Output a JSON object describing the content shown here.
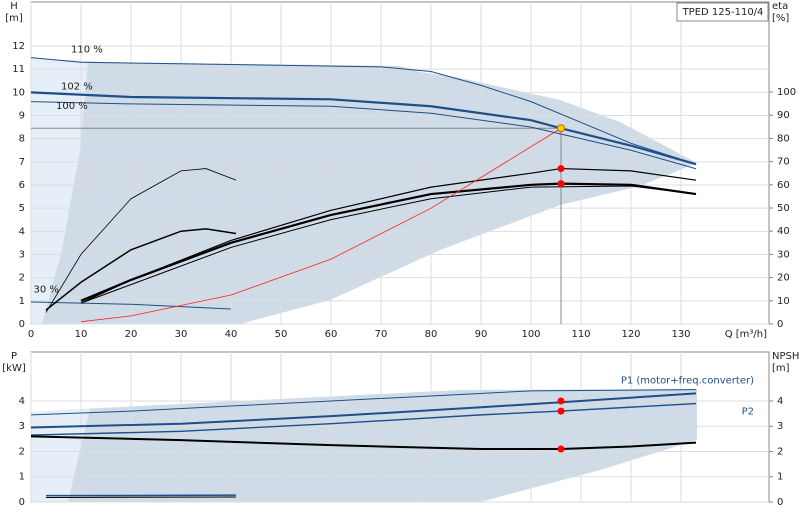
{
  "chart_data": [
    {
      "type": "line",
      "title": "TPED 125-110/4",
      "ylabel_lines": [
        "H",
        "[m]"
      ],
      "y2label_lines": [
        "eta",
        "[%]"
      ],
      "xlabel": "Q [m³/h]",
      "xlim": [
        0,
        147.6
      ],
      "xticks": [
        0,
        10,
        20,
        30,
        40,
        50,
        60,
        70,
        80,
        90,
        100,
        110,
        120,
        130
      ],
      "ylim": [
        0,
        13.9
      ],
      "yticks": [
        0,
        1,
        2,
        3,
        4,
        5,
        6,
        7,
        8,
        9,
        10,
        11,
        12
      ],
      "y2lim": [
        0,
        138.8
      ],
      "y2ticks": [
        0,
        10,
        20,
        30,
        40,
        50,
        60,
        70,
        80,
        90,
        100
      ],
      "grid": true,
      "series": [
        {
          "name": "110 %",
          "color": "#1f4f8a",
          "line_width": 1,
          "x": [
            0,
            10,
            40,
            70,
            80,
            90,
            100,
            110,
            120,
            133
          ],
          "values": [
            11.5,
            11.3,
            11.2,
            11.1,
            10.9,
            10.3,
            9.6,
            8.7,
            7.8,
            6.9
          ]
        },
        {
          "name": "102 %",
          "color": "#1f4f8a",
          "line_width": 2.2,
          "x": [
            0,
            20,
            60,
            80,
            100,
            106,
            120,
            133
          ],
          "values": [
            10.0,
            9.8,
            9.7,
            9.4,
            8.8,
            8.45,
            7.7,
            6.9
          ]
        },
        {
          "name": "100 %",
          "color": "#1f4f8a",
          "line_width": 1,
          "x": [
            0,
            20,
            60,
            80,
            100,
            120,
            133
          ],
          "values": [
            9.6,
            9.5,
            9.4,
            9.1,
            8.5,
            7.5,
            6.7
          ]
        },
        {
          "name": "30 %",
          "color": "#1f4f8a",
          "line_width": 1,
          "x": [
            0,
            10,
            20,
            30,
            40
          ],
          "values": [
            0.95,
            0.9,
            0.85,
            0.75,
            0.65
          ]
        },
        {
          "color": "#000000",
          "line_width": 1.2,
          "axis": "y2",
          "x": [
            10,
            20,
            40,
            60,
            80,
            100,
            106,
            120,
            133
          ],
          "values": [
            9,
            19,
            36,
            49,
            59,
            65,
            67,
            66,
            62
          ]
        },
        {
          "color": "#000000",
          "line_width": 2.2,
          "axis": "y2",
          "x": [
            10,
            20,
            40,
            60,
            80,
            100,
            106,
            120,
            133
          ],
          "values": [
            10,
            19,
            35,
            47,
            56,
            60,
            60.5,
            60,
            56
          ]
        },
        {
          "color": "#000000",
          "line_width": 1,
          "axis": "y2",
          "x": [
            10,
            40,
            60,
            80,
            100,
            120,
            133
          ],
          "values": [
            9,
            33,
            45,
            54,
            59,
            59.5,
            56
          ]
        },
        {
          "color": "#000000",
          "line_width": 0.8,
          "axis": "y2",
          "x": [
            3,
            10,
            20,
            30,
            35,
            41
          ],
          "values": [
            5,
            30,
            54,
            66,
            67,
            62
          ]
        },
        {
          "color": "#000000",
          "line_width": 1.5,
          "axis": "y2",
          "x": [
            3,
            10,
            20,
            30,
            35,
            41
          ],
          "values": [
            6,
            18,
            32,
            40,
            41,
            39
          ]
        },
        {
          "color": "#ff2020",
          "line_width": 0.8,
          "x": [
            10,
            20,
            40,
            60,
            80,
            106
          ],
          "values": [
            0.1,
            0.35,
            1.25,
            2.8,
            5.0,
            8.45
          ]
        }
      ],
      "points": [
        {
          "x": 106,
          "y": 8.45,
          "color": "#ffcc00"
        },
        {
          "x": 106,
          "y": 67,
          "color": "#ff0000",
          "axis": "y2"
        },
        {
          "x": 106,
          "y": 60.5,
          "color": "#ff0000",
          "axis": "y2"
        }
      ]
    },
    {
      "type": "line",
      "ylabel_lines": [
        "P",
        "[kW]"
      ],
      "y2label_lines": [
        "NPSH",
        "[m]"
      ],
      "xlim": [
        0,
        147.6
      ],
      "xticks": [
        0,
        10,
        20,
        30,
        40,
        50,
        60,
        70,
        80,
        90,
        100,
        110,
        120,
        130
      ],
      "ylim": [
        0,
        5.94
      ],
      "yticks": [
        0,
        1,
        2,
        3,
        4
      ],
      "y2lim": [
        0,
        5.94
      ],
      "y2ticks": [
        0,
        1,
        2,
        3,
        4
      ],
      "grid": true,
      "series": [
        {
          "name": "P1 (motor+freq.converter)",
          "color": "#1f4f8a",
          "line_width": 1,
          "x": [
            0,
            20,
            40,
            60,
            80,
            100,
            133
          ],
          "values": [
            3.45,
            3.6,
            3.8,
            4.0,
            4.2,
            4.4,
            4.45
          ]
        },
        {
          "color": "#1f4f8a",
          "line_width": 2,
          "x": [
            0,
            30,
            60,
            90,
            106,
            133
          ],
          "values": [
            2.95,
            3.1,
            3.4,
            3.75,
            3.95,
            4.3
          ]
        },
        {
          "name": "P2",
          "color": "#1f4f8a",
          "line_width": 1.4,
          "x": [
            0,
            30,
            60,
            90,
            106,
            133
          ],
          "values": [
            2.65,
            2.8,
            3.1,
            3.45,
            3.6,
            3.9
          ]
        },
        {
          "color": "#000000",
          "line_width": 2,
          "axis": "y2",
          "x": [
            0,
            30,
            60,
            90,
            106,
            120,
            133
          ],
          "values": [
            2.6,
            2.45,
            2.25,
            2.1,
            2.1,
            2.2,
            2.35
          ]
        },
        {
          "color": "#1f4f8a",
          "line_width": 1.5,
          "x": [
            3,
            41
          ],
          "values": [
            0.25,
            0.27
          ]
        },
        {
          "color": "#000000",
          "line_width": 1,
          "axis": "y2",
          "x": [
            3,
            41
          ],
          "values": [
            0.18,
            0.2
          ]
        }
      ],
      "points": [
        {
          "x": 106,
          "y": 4.0,
          "color": "#ff0000"
        },
        {
          "x": 106,
          "y": 3.6,
          "color": "#ff0000"
        },
        {
          "x": 106,
          "y": 2.1,
          "color": "#ff0000",
          "axis": "y2"
        }
      ]
    }
  ]
}
